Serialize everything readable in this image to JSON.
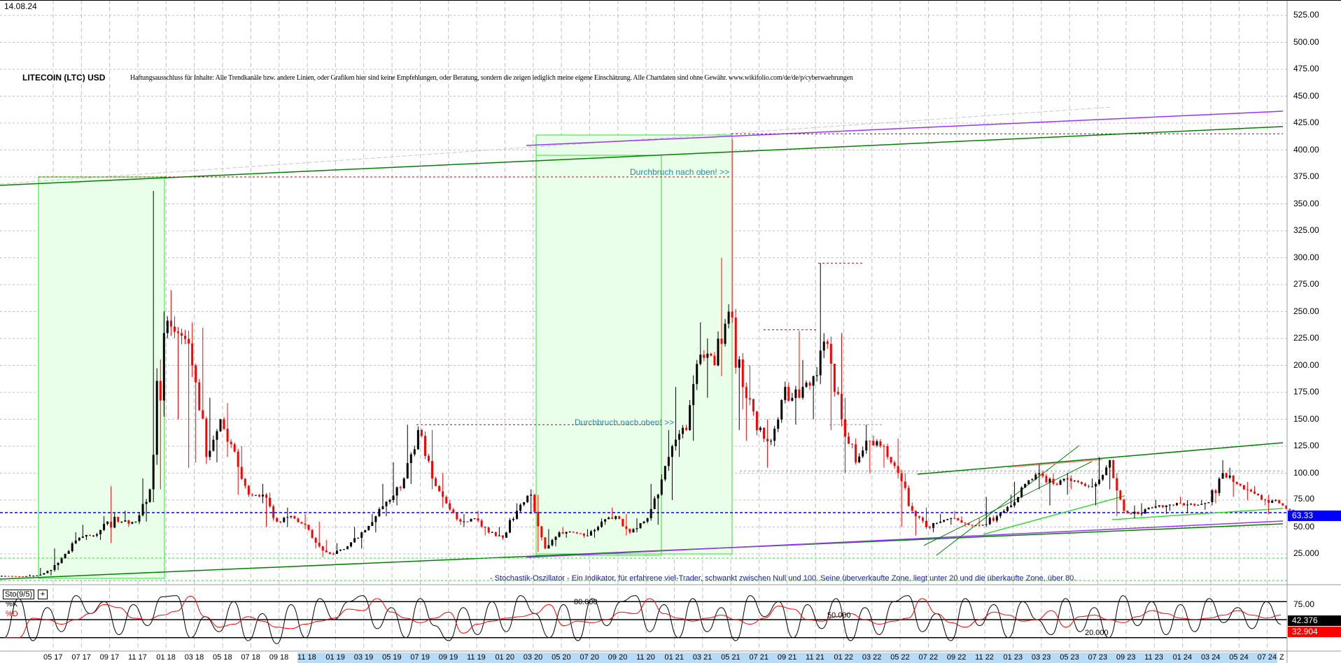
{
  "header": {
    "date": "14.08.24",
    "title": "LITECOIN (LTC) USD",
    "disclaimer": "Haftungsausschluss für Inhalte: Alle Trendkanäle bzw. andere Linien, oder Grafiken hier sind keine Empfehlungen, oder Beratung, sondern die zeigen lediglich meine eigene Einschätzung. Alle Chartdaten sind ohne Gewähr.  www.wikifolio.com/de/de/p/cyberwaehrungen"
  },
  "annotations": {
    "breakout_1": "Durchbruch nach oben! >>",
    "breakout_2": "Durchbruch nach oben! >>",
    "stochastic_note": "- Stochastik-Oszillator - Ein Indikator, für erfahrene viel-Trader, schwankt zwischen Null und 100. Seine überverkaufte Zone, liegt unter 20 und die überkaufte Zone, über 80."
  },
  "colors": {
    "candle_up": "#000000",
    "candle_down": "#ff0000",
    "channel_green": "#008000",
    "light_green": "#33dd33",
    "purple": "#9933ff",
    "resistance_red": "#cc0000",
    "current_price_blue": "#0000ff",
    "zone_fill": "#eaffea",
    "stoch_k": "#000000",
    "stoch_d": "#ff0000",
    "time_axis_highlight": "#b8dcf8"
  },
  "chart_data": [
    {
      "type": "candlestick",
      "title": "LITECOIN (LTC) USD",
      "interval": "monthly (approx.)",
      "ylim": [
        0,
        530
      ],
      "yticks": [
        "525.00",
        "500.00",
        "475.00",
        "450.00",
        "425.00",
        "400.00",
        "375.00",
        "350.00",
        "325.00",
        "300.00",
        "275.00",
        "250.00",
        "225.00",
        "200.00",
        "175.00",
        "150.00",
        "125.00",
        "100.00",
        "75.00",
        "50.00",
        "25.000"
      ],
      "current_price": "63.33",
      "grid": true,
      "start_month": "01 17",
      "ohlc_columns": [
        "high",
        "low",
        "close"
      ],
      "data": [
        [
          5,
          4,
          4.5
        ],
        [
          4.5,
          3.7,
          4
        ],
        [
          6,
          3.8,
          5
        ],
        [
          12,
          5,
          10
        ],
        [
          30,
          10,
          25
        ],
        [
          45,
          25,
          40
        ],
        [
          52,
          38,
          42
        ],
        [
          60,
          38,
          55
        ],
        [
          88,
          35,
          55
        ],
        [
          65,
          50,
          55
        ],
        [
          95,
          55,
          85
        ],
        [
          362,
          85,
          230
        ],
        [
          270,
          150,
          230
        ],
        [
          240,
          105,
          200
        ],
        [
          235,
          110,
          115
        ],
        [
          170,
          110,
          150
        ],
        [
          165,
          115,
          120
        ],
        [
          125,
          80,
          80
        ],
        [
          90,
          72,
          80
        ],
        [
          82,
          50,
          55
        ],
        [
          68,
          50,
          60
        ],
        [
          62,
          48,
          52
        ],
        [
          55,
          30,
          32
        ],
        [
          38,
          22,
          25
        ],
        [
          35,
          28,
          32
        ],
        [
          50,
          30,
          45
        ],
        [
          62,
          45,
          60
        ],
        [
          90,
          60,
          75
        ],
        [
          110,
          70,
          95
        ],
        [
          145,
          90,
          140
        ],
        [
          140,
          85,
          95
        ],
        [
          100,
          68,
          72
        ],
        [
          75,
          52,
          55
        ],
        [
          62,
          50,
          58
        ],
        [
          65,
          42,
          45
        ],
        [
          50,
          38,
          40
        ],
        [
          72,
          40,
          65
        ],
        [
          85,
          62,
          80
        ],
        [
          80,
          27,
          30
        ],
        [
          48,
          32,
          45
        ],
        [
          50,
          40,
          45
        ],
        [
          48,
          40,
          42
        ],
        [
          58,
          40,
          55
        ],
        [
          68,
          52,
          60
        ],
        [
          62,
          42,
          45
        ],
        [
          58,
          45,
          55
        ],
        [
          90,
          52,
          80
        ],
        [
          140,
          75,
          125
        ],
        [
          180,
          115,
          140
        ],
        [
          240,
          130,
          210
        ],
        [
          225,
          170,
          200
        ],
        [
          300,
          190,
          250
        ],
        [
          410,
          140,
          180
        ],
        [
          200,
          130,
          140
        ],
        [
          150,
          105,
          130
        ],
        [
          185,
          125,
          180
        ],
        [
          232,
          145,
          170
        ],
        [
          205,
          150,
          190
        ],
        [
          295,
          185,
          220
        ],
        [
          230,
          140,
          150
        ],
        [
          170,
          100,
          110
        ],
        [
          145,
          100,
          130
        ],
        [
          135,
          105,
          125
        ],
        [
          132,
          95,
          100
        ],
        [
          100,
          50,
          65
        ],
        [
          68,
          42,
          50
        ],
        [
          62,
          45,
          55
        ],
        [
          65,
          52,
          58
        ],
        [
          60,
          50,
          52
        ],
        [
          58,
          50,
          52
        ],
        [
          78,
          50,
          60
        ],
        [
          80,
          58,
          70
        ],
        [
          92,
          68,
          90
        ],
        [
          108,
          85,
          100
        ],
        [
          100,
          70,
          90
        ],
        [
          100,
          80,
          95
        ],
        [
          98,
          85,
          90
        ],
        [
          95,
          70,
          90
        ],
        [
          115,
          85,
          112
        ],
        [
          100,
          60,
          65
        ],
        [
          70,
          58,
          62
        ],
        [
          72,
          60,
          68
        ],
        [
          75,
          62,
          70
        ],
        [
          78,
          65,
          72
        ],
        [
          75,
          63,
          70
        ],
        [
          75,
          66,
          73
        ],
        [
          112,
          72,
          100
        ],
        [
          105,
          78,
          90
        ],
        [
          92,
          75,
          83
        ],
        [
          88,
          70,
          75
        ],
        [
          80,
          62,
          72
        ],
        [
          70,
          55,
          63.33
        ]
      ],
      "horizontal_levels": {
        "resistance_415": 415,
        "resistance_375": 375,
        "resistance_295": 295,
        "resistance_233": 233,
        "resistance_145": 145,
        "support_102": 102,
        "current": 63.33
      }
    },
    {
      "type": "line",
      "title": "Sto(9/5)",
      "legend": [
        "%K",
        "%D"
      ],
      "ylim": [
        0,
        100
      ],
      "levels": [
        "80.000",
        "50.000",
        "20.000"
      ],
      "ytick": "75.00",
      "k_current": "42.376",
      "d_current": "32.904",
      "k_values": [
        20,
        85,
        15,
        70,
        30,
        90,
        60,
        80,
        25,
        75,
        40,
        88,
        90,
        20,
        55,
        30,
        80,
        15,
        60,
        10,
        75,
        20,
        85,
        50,
        80,
        90,
        35,
        70,
        20,
        85,
        40,
        15,
        70,
        25,
        80,
        30,
        90,
        60,
        20,
        75,
        15,
        85,
        40,
        80,
        90,
        30,
        75,
        20,
        85,
        30,
        70,
        15,
        90,
        55,
        80,
        20,
        75,
        35,
        85,
        15,
        70,
        25,
        80,
        90,
        30,
        60,
        15,
        85,
        40,
        75,
        20,
        80,
        50,
        25,
        85,
        30,
        70,
        20,
        90,
        40,
        80,
        25,
        75,
        30,
        85,
        45,
        70,
        35,
        80,
        42.376
      ]
    }
  ],
  "time_axis": {
    "labels": [
      "05 17",
      "07 17",
      "09 17",
      "11 17",
      "01 18",
      "03 18",
      "05 18",
      "07 18",
      "09 18",
      "11 18",
      "01 19",
      "03 19",
      "05 19",
      "07 19",
      "09 19",
      "11 19",
      "01 20",
      "03 20",
      "05 20",
      "07 20",
      "09 20",
      "11 20",
      "01 21",
      "03 21",
      "05 21",
      "07 21",
      "09 21",
      "11 21",
      "01 22",
      "03 22",
      "05 22",
      "07 22",
      "09 22",
      "11 22",
      "01 23",
      "03 23",
      "05 23",
      "07 23",
      "09 23",
      "11 23",
      "01 24",
      "03 24",
      "05 24",
      "07 24"
    ],
    "end_marker": "Z"
  }
}
